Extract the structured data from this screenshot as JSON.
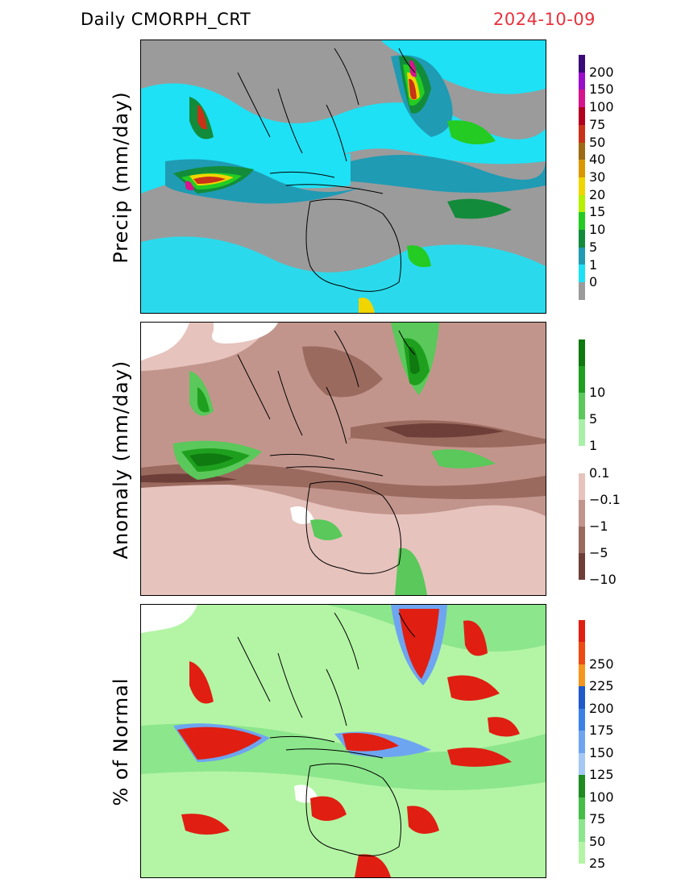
{
  "header": {
    "title": "Daily  CMORPH_CRT",
    "date": "2024-10-09"
  },
  "panels": [
    {
      "ylabel": "Precip  (mm/day)",
      "colorbar": [
        {
          "label": "200",
          "color": "#3a0a78"
        },
        {
          "label": "150",
          "color": "#9a0ec8"
        },
        {
          "label": "100",
          "color": "#d6148c"
        },
        {
          "label": "75",
          "color": "#b2001e"
        },
        {
          "label": "50",
          "color": "#c83218"
        },
        {
          "label": "40",
          "color": "#9e6a14"
        },
        {
          "label": "30",
          "color": "#d99800"
        },
        {
          "label": "20",
          "color": "#f0d500"
        },
        {
          "label": "15",
          "color": "#b4f000"
        },
        {
          "label": "10",
          "color": "#23cb23"
        },
        {
          "label": "5",
          "color": "#128c3a"
        },
        {
          "label": "1",
          "color": "#1f9bb4"
        },
        {
          "label": "0",
          "color": "#1ee1f5"
        },
        {
          "label": "",
          "color": "#9b9b9b"
        }
      ]
    },
    {
      "ylabel": "Anomaly  (mm/day)",
      "colorbar": [
        {
          "label": "",
          "color": "#0f7a0f"
        },
        {
          "label": "10",
          "color": "#1ea01e"
        },
        {
          "label": "5",
          "color": "#5ac85a"
        },
        {
          "label": "1",
          "color": "#a8f0a8"
        },
        {
          "label": "0.1",
          "color": "#ffffff"
        },
        {
          "label": "−0.1",
          "color": "#e6c3bd"
        },
        {
          "label": "−1",
          "color": "#c2958c"
        },
        {
          "label": "−5",
          "color": "#9b6a5f"
        },
        {
          "label": "−10",
          "color": "#6e3f38"
        }
      ]
    },
    {
      "ylabel": "%  of  Normal",
      "colorbar": [
        {
          "label": "",
          "color": "#e01e12"
        },
        {
          "label": "250",
          "color": "#ee4a14"
        },
        {
          "label": "225",
          "color": "#f5961e"
        },
        {
          "label": "200",
          "color": "#1e5ac8"
        },
        {
          "label": "175",
          "color": "#3c82e6"
        },
        {
          "label": "150",
          "color": "#6ea5f0"
        },
        {
          "label": "125",
          "color": "#a5c8f5"
        },
        {
          "label": "100",
          "color": "#1e8c1e"
        },
        {
          "label": "75",
          "color": "#46be46"
        },
        {
          "label": "50",
          "color": "#8ce68c"
        },
        {
          "label": "25",
          "color": "#b4f5a5"
        }
      ]
    }
  ]
}
